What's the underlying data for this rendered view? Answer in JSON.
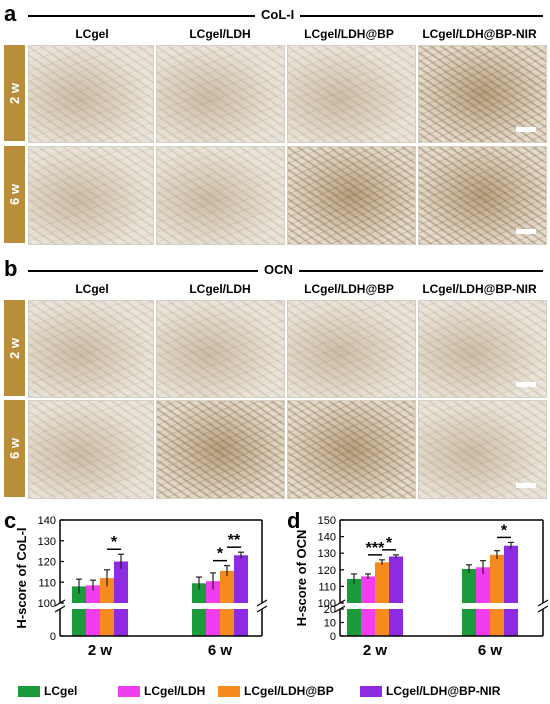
{
  "panels": {
    "a": {
      "letter": "a",
      "title": "CoL-I"
    },
    "b": {
      "letter": "b",
      "title": "OCN"
    },
    "c": {
      "letter": "c"
    },
    "d": {
      "letter": "d"
    }
  },
  "columns": [
    "LCgel",
    "LCgel/LDH",
    "LCgel/LDH@BP",
    "LCgel/LDH@BP-NIR"
  ],
  "rows": [
    "2 w",
    "6 w"
  ],
  "colors": {
    "LCgel": "#1a9a3a",
    "LCgel/LDH": "#f13cf0",
    "LCgel/LDH@BP": "#f58a1f",
    "LCgel/LDH@BP-NIR": "#8c2be2",
    "row_tab": "#b98e3a"
  },
  "chart_data": [
    {
      "type": "bar",
      "panel": "c",
      "title": "",
      "xlabel": "",
      "ylabel": "H-score of CoL-I",
      "categories": [
        "2 w",
        "6 w"
      ],
      "ylim_lower": [
        0,
        10
      ],
      "ylim": [
        100,
        140
      ],
      "yticks": [
        0,
        100,
        110,
        120,
        130,
        140
      ],
      "broken_axis": true,
      "series": [
        {
          "name": "LCgel",
          "values": [
            108,
            109.5
          ],
          "errors": [
            3.5,
            3
          ]
        },
        {
          "name": "LCgel/LDH",
          "values": [
            108.5,
            110.5
          ],
          "errors": [
            2.5,
            4
          ]
        },
        {
          "name": "LCgel/LDH@BP",
          "values": [
            112,
            115.5
          ],
          "errors": [
            4,
            2.5
          ]
        },
        {
          "name": "LCgel/LDH@BP-NIR",
          "values": [
            120,
            123
          ],
          "errors": [
            3.5,
            1.5
          ]
        }
      ],
      "significance": [
        {
          "category": "2 w",
          "from": "LCgel/LDH@BP",
          "to": "LCgel/LDH@BP-NIR",
          "label": "*"
        },
        {
          "category": "6 w",
          "from": "LCgel/LDH",
          "to": "LCgel/LDH@BP",
          "label": "*"
        },
        {
          "category": "6 w",
          "from": "LCgel/LDH@BP",
          "to": "LCgel/LDH@BP-NIR",
          "label": "**"
        }
      ]
    },
    {
      "type": "bar",
      "panel": "d",
      "title": "",
      "xlabel": "",
      "ylabel": "H-score of OCN",
      "categories": [
        "2 w",
        "6 w"
      ],
      "ylim_lower": [
        0,
        20
      ],
      "ylim": [
        100,
        150
      ],
      "yticks": [
        0,
        10,
        20,
        100,
        110,
        120,
        130,
        140,
        150
      ],
      "broken_axis": true,
      "series": [
        {
          "name": "LCgel",
          "values": [
            114.5,
            120.5
          ],
          "errors": [
            3,
            2.5
          ]
        },
        {
          "name": "LCgel/LDH",
          "values": [
            116,
            121.5
          ],
          "errors": [
            1.5,
            4
          ]
        },
        {
          "name": "LCgel/LDH@BP",
          "values": [
            124.5,
            129
          ],
          "errors": [
            1.5,
            2.5
          ]
        },
        {
          "name": "LCgel/LDH@BP-NIR",
          "values": [
            128,
            134.5
          ],
          "errors": [
            1,
            2
          ]
        }
      ],
      "significance": [
        {
          "category": "2 w",
          "from": "LCgel/LDH",
          "to": "LCgel/LDH@BP",
          "label": "***"
        },
        {
          "category": "2 w",
          "from": "LCgel/LDH@BP",
          "to": "LCgel/LDH@BP-NIR",
          "label": "*"
        },
        {
          "category": "6 w",
          "from": "LCgel/LDH@BP",
          "to": "LCgel/LDH@BP-NIR",
          "label": "*"
        }
      ]
    }
  ]
}
